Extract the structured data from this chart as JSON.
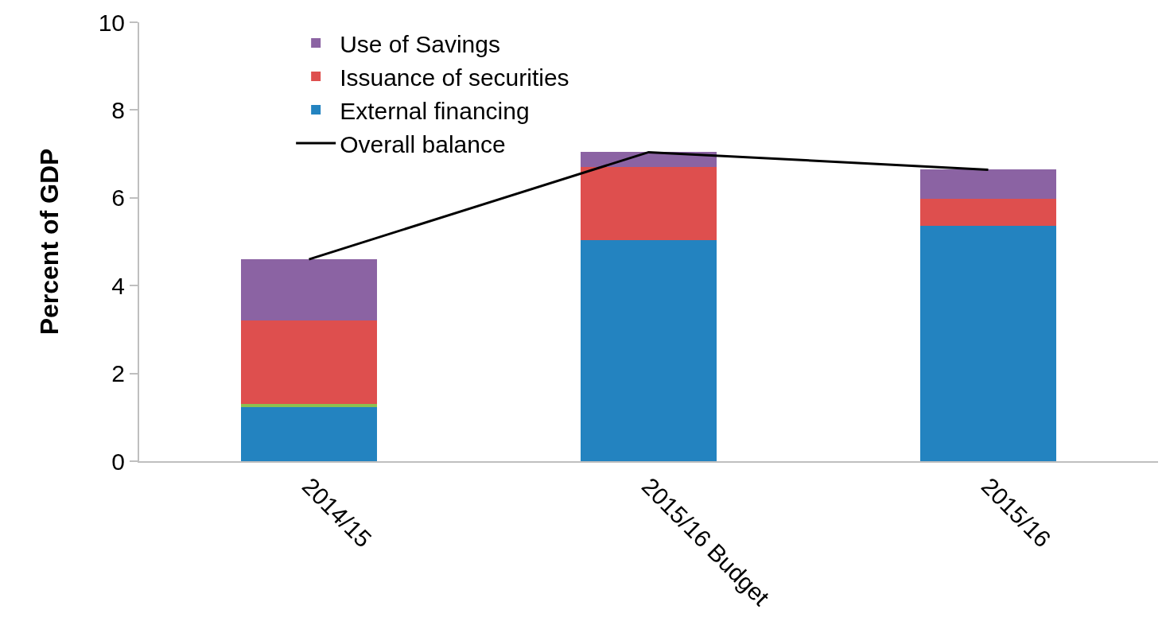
{
  "chart_data": {
    "type": "bar",
    "stacked": true,
    "ylabel": "Percent of GDP",
    "categories": [
      "2014/15",
      "2015/16 Budget",
      "2015/16"
    ],
    "series": [
      {
        "name": "External financing",
        "color": "#2383c0",
        "values": [
          1.23,
          5.04,
          5.36
        ]
      },
      {
        "color": "#8cc04f",
        "values": [
          0.07,
          0,
          0
        ]
      },
      {
        "name": "Issuance of securities",
        "color": "#de4f4e",
        "values": [
          1.9,
          1.66,
          0.61
        ]
      },
      {
        "name": "Use of Savings",
        "color": "#8b63a3",
        "values": [
          1.41,
          0.34,
          0.67
        ]
      },
      {
        "name": "Overall balance",
        "type": "line",
        "color": "#000000",
        "values": [
          4.6,
          7.04,
          6.64
        ]
      }
    ],
    "ylim": [
      0,
      10
    ],
    "yticks": [
      0,
      2,
      4,
      6,
      8,
      10
    ],
    "grid": false,
    "legend": "top",
    "marker": "none",
    "line_style": "solid"
  }
}
